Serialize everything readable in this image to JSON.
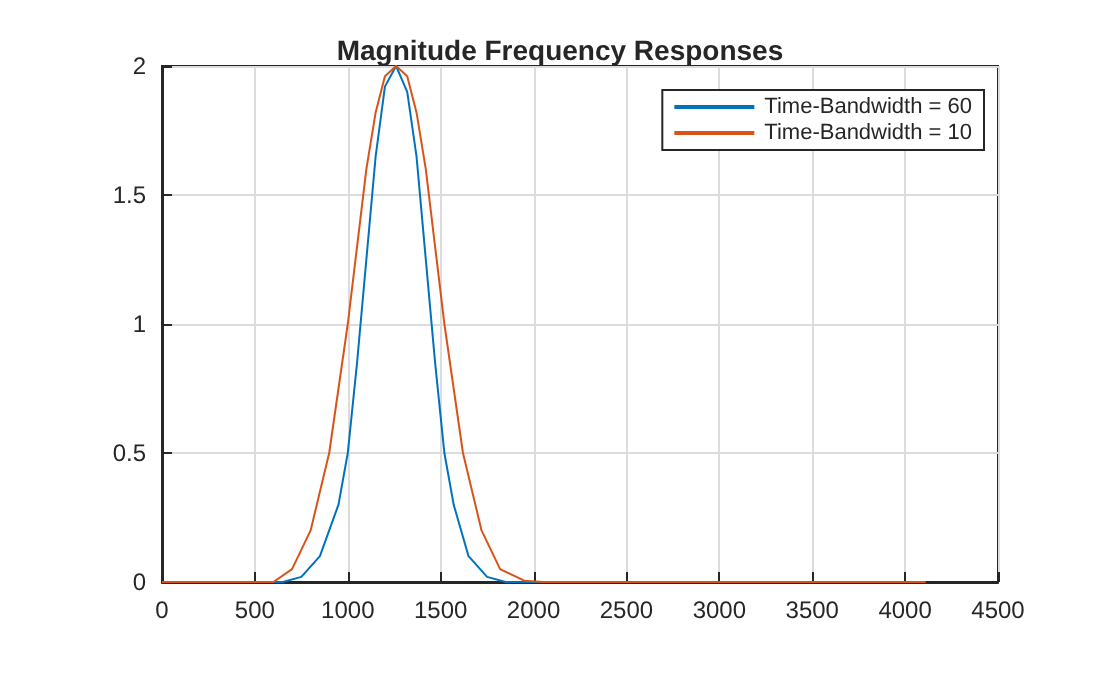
{
  "chart_data": {
    "type": "line",
    "title": "Magnitude Frequency Responses",
    "series": [
      {
        "name": "Time-Bandwidth = 60",
        "color": "#0072bd",
        "x": [
          0,
          650,
          750,
          850,
          950,
          1000,
          1050,
          1100,
          1150,
          1200,
          1260,
          1320,
          1370,
          1420,
          1470,
          1520,
          1570,
          1650,
          1750,
          1850,
          4110
        ],
        "values": [
          0,
          0,
          0.02,
          0.1,
          0.3,
          0.5,
          0.85,
          1.25,
          1.65,
          1.92,
          2,
          1.9,
          1.65,
          1.25,
          0.85,
          0.5,
          0.3,
          0.1,
          0.02,
          0,
          0
        ]
      },
      {
        "name": "Time-Bandwidth = 10",
        "color": "#d95319",
        "x": [
          0,
          600,
          700,
          800,
          900,
          950,
          1000,
          1050,
          1100,
          1150,
          1200,
          1260,
          1320,
          1370,
          1420,
          1470,
          1520,
          1570,
          1620,
          1720,
          1820,
          1950,
          2050,
          4110
        ],
        "values": [
          0,
          0,
          0.05,
          0.2,
          0.5,
          0.75,
          1.0,
          1.3,
          1.6,
          1.82,
          1.96,
          2,
          1.96,
          1.82,
          1.6,
          1.3,
          1.0,
          0.75,
          0.5,
          0.2,
          0.05,
          0.005,
          0,
          0
        ]
      }
    ],
    "xlim": [
      0,
      4500
    ],
    "xticks": [
      0,
      500,
      1000,
      1500,
      2000,
      2500,
      3000,
      3500,
      4000,
      4500
    ],
    "ylim": [
      0,
      2
    ],
    "yticks": [
      0,
      0.5,
      1,
      1.5,
      2
    ],
    "grid": true,
    "legend": "top right",
    "line_style": "solid"
  }
}
